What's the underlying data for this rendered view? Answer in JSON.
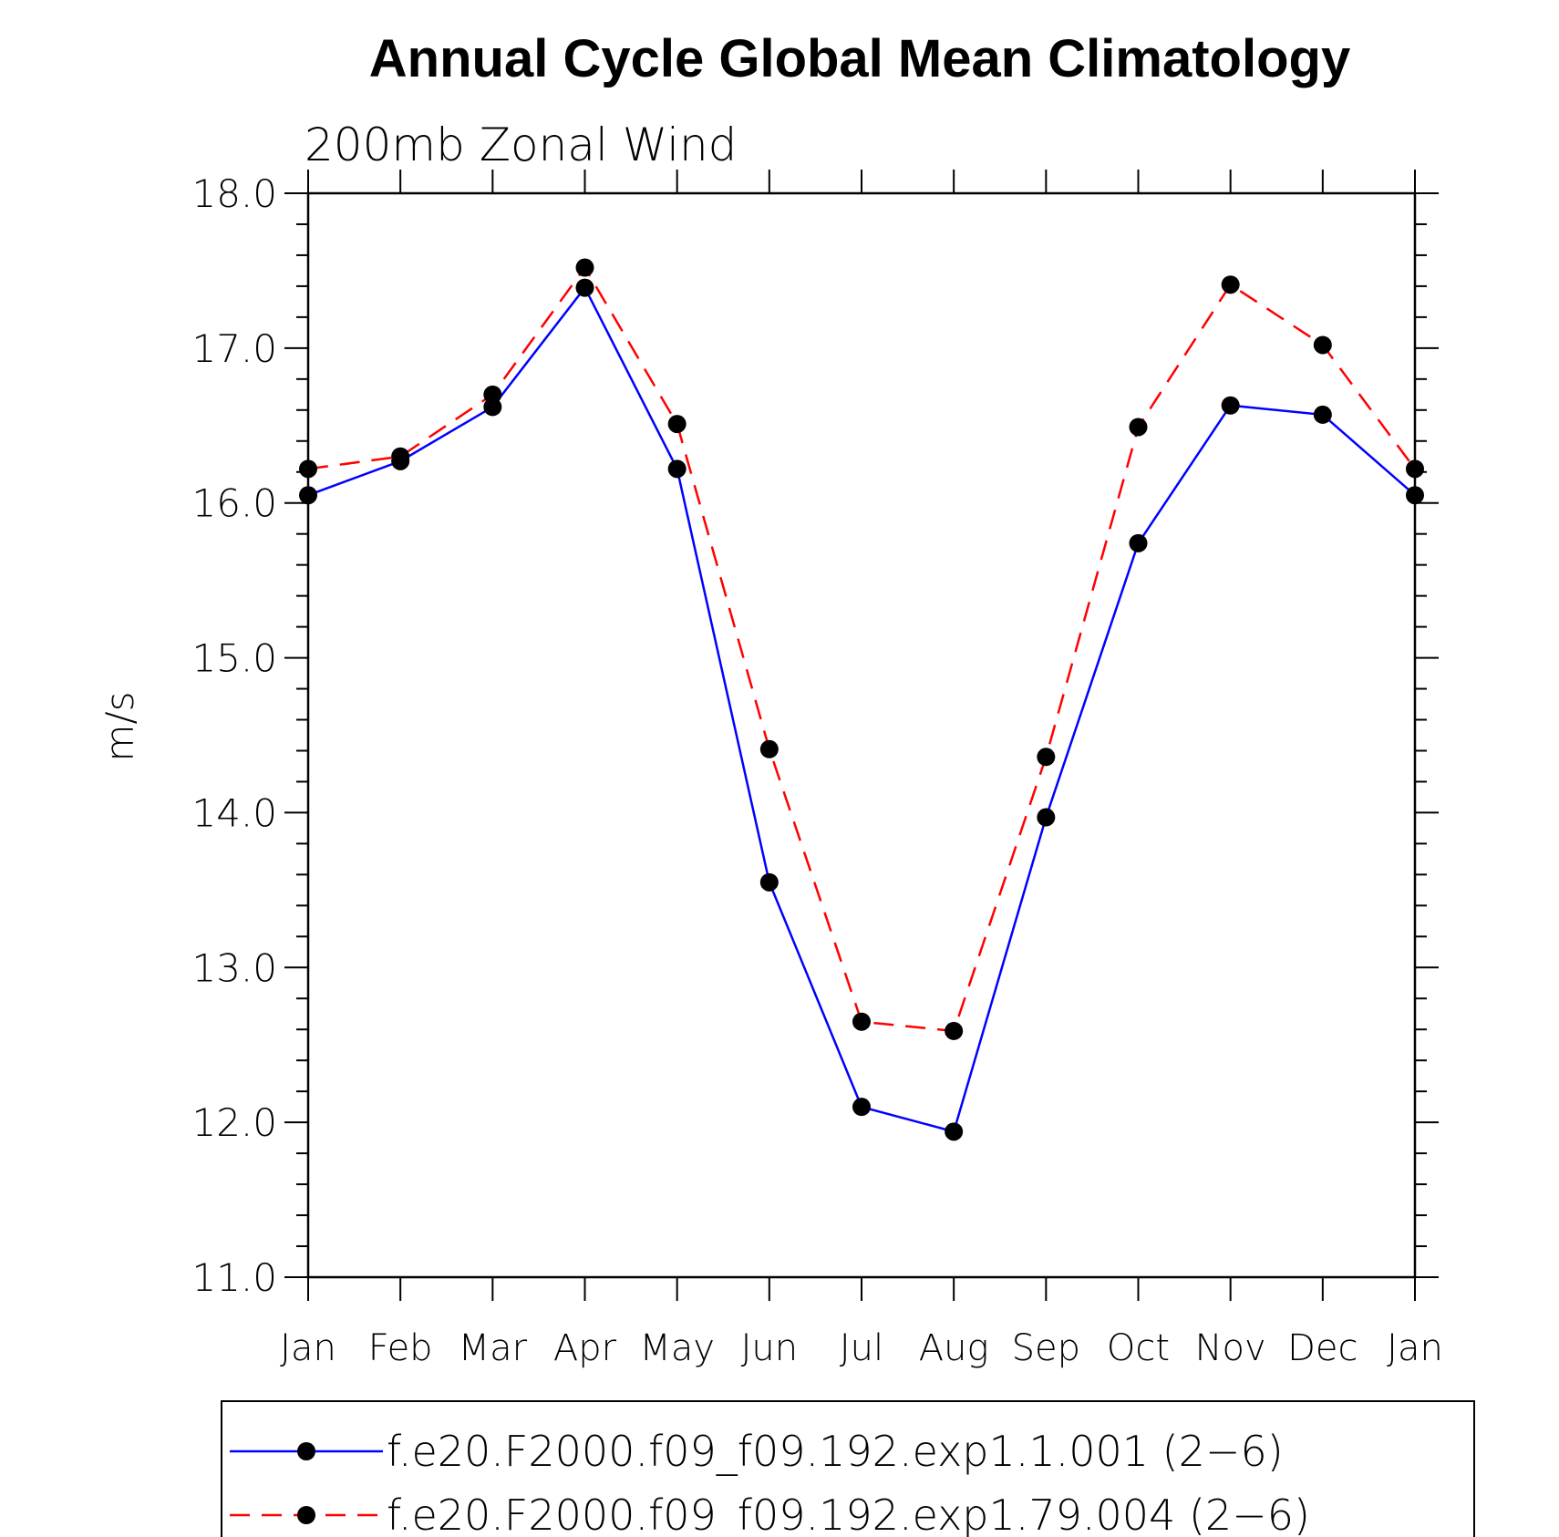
{
  "chart_data": {
    "type": "line",
    "title": "Annual Cycle Global Mean Climatology",
    "subtitle": "200mb Zonal Wind",
    "xlabel": "",
    "ylabel": "m/s",
    "categories": [
      "Jan",
      "Feb",
      "Mar",
      "Apr",
      "May",
      "Jun",
      "Jul",
      "Aug",
      "Sep",
      "Oct",
      "Nov",
      "Dec",
      "Jan"
    ],
    "ylim": [
      11.0,
      18.0
    ],
    "yticks": [
      "11.0",
      "12.0",
      "13.0",
      "14.0",
      "15.0",
      "16.0",
      "17.0",
      "18.0"
    ],
    "grid": false,
    "legend_position": "bottom",
    "series": [
      {
        "name": "f.e20.F2000.f09_f09.192.exp1.1.001 (2−6)",
        "color": "#0000ff",
        "line_style": "solid",
        "marker": "filled-circle",
        "values": [
          16.05,
          16.27,
          16.62,
          17.39,
          16.22,
          13.55,
          12.1,
          11.94,
          13.97,
          15.74,
          16.63,
          16.57,
          16.05
        ]
      },
      {
        "name": "f.e20.F2000.f09_f09.192.exp1.79.004 (2−6)",
        "color": "#ff0000",
        "line_style": "dashed",
        "marker": "filled-circle",
        "values": [
          16.22,
          16.3,
          16.7,
          17.52,
          16.51,
          14.41,
          12.65,
          12.59,
          14.36,
          16.49,
          17.41,
          17.02,
          16.22
        ]
      }
    ]
  }
}
